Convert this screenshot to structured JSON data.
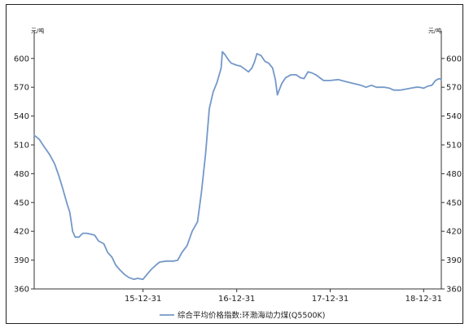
{
  "chart_data": {
    "type": "line",
    "unit_left": "元/吨",
    "unit_right": "元/吨",
    "ylim": [
      360,
      610
    ],
    "yticks": [
      360,
      390,
      420,
      450,
      480,
      510,
      540,
      570,
      600
    ],
    "xticks": [
      {
        "label": "15-12-31",
        "x": "2015-12-31"
      },
      {
        "label": "16-12-31",
        "x": "2016-12-31"
      },
      {
        "label": "17-12-31",
        "x": "2017-12-31"
      },
      {
        "label": "18-12-31",
        "x": "2018-12-31"
      }
    ],
    "xlim": [
      "2014-11-01",
      "2019-03-10"
    ],
    "grid": {
      "x": false,
      "y": false
    },
    "legend_position": "bottom",
    "series": [
      {
        "name": "综合平均价格指数:环渤海动力煤(Q5500K)",
        "color": "#7398c8",
        "points": [
          [
            "2014-11-01",
            520
          ],
          [
            "2014-11-20",
            516
          ],
          [
            "2014-12-10",
            508
          ],
          [
            "2014-12-31",
            500
          ],
          [
            "2015-01-20",
            490
          ],
          [
            "2015-02-05",
            478
          ],
          [
            "2015-02-20",
            465
          ],
          [
            "2015-03-10",
            448
          ],
          [
            "2015-03-20",
            440
          ],
          [
            "2015-03-31",
            420
          ],
          [
            "2015-04-10",
            414
          ],
          [
            "2015-04-25",
            414
          ],
          [
            "2015-05-10",
            418
          ],
          [
            "2015-05-25",
            418
          ],
          [
            "2015-06-10",
            417
          ],
          [
            "2015-06-25",
            416
          ],
          [
            "2015-07-10",
            410
          ],
          [
            "2015-07-31",
            407
          ],
          [
            "2015-08-15",
            398
          ],
          [
            "2015-09-01",
            393
          ],
          [
            "2015-09-15",
            385
          ],
          [
            "2015-10-01",
            380
          ],
          [
            "2015-10-20",
            375
          ],
          [
            "2015-11-05",
            372
          ],
          [
            "2015-11-25",
            370
          ],
          [
            "2015-12-10",
            371
          ],
          [
            "2015-12-31",
            370
          ],
          [
            "2016-01-15",
            375
          ],
          [
            "2016-01-31",
            380
          ],
          [
            "2016-02-20",
            385
          ],
          [
            "2016-03-05",
            388
          ],
          [
            "2016-03-31",
            389
          ],
          [
            "2016-04-30",
            389
          ],
          [
            "2016-05-15",
            390
          ],
          [
            "2016-05-31",
            398
          ],
          [
            "2016-06-20",
            405
          ],
          [
            "2016-07-10",
            420
          ],
          [
            "2016-07-31",
            430
          ],
          [
            "2016-08-15",
            460
          ],
          [
            "2016-08-31",
            500
          ],
          [
            "2016-09-15",
            548
          ],
          [
            "2016-09-30",
            565
          ],
          [
            "2016-10-15",
            575
          ],
          [
            "2016-10-31",
            590
          ],
          [
            "2016-11-05",
            607
          ],
          [
            "2016-11-15",
            604
          ],
          [
            "2016-11-30",
            598
          ],
          [
            "2016-12-10",
            595
          ],
          [
            "2016-12-31",
            593
          ],
          [
            "2017-01-15",
            592
          ],
          [
            "2017-01-31",
            589
          ],
          [
            "2017-02-15",
            586
          ],
          [
            "2017-02-28",
            590
          ],
          [
            "2017-03-10",
            596
          ],
          [
            "2017-03-20",
            605
          ],
          [
            "2017-04-05",
            603
          ],
          [
            "2017-04-20",
            597
          ],
          [
            "2017-05-05",
            595
          ],
          [
            "2017-05-20",
            590
          ],
          [
            "2017-05-31",
            578
          ],
          [
            "2017-06-08",
            562
          ],
          [
            "2017-06-15",
            567
          ],
          [
            "2017-06-25",
            574
          ],
          [
            "2017-07-10",
            580
          ],
          [
            "2017-07-31",
            583
          ],
          [
            "2017-08-20",
            583
          ],
          [
            "2017-09-05",
            580
          ],
          [
            "2017-09-20",
            579
          ],
          [
            "2017-10-05",
            586
          ],
          [
            "2017-10-20",
            585
          ],
          [
            "2017-11-05",
            583
          ],
          [
            "2017-11-20",
            580
          ],
          [
            "2017-12-05",
            577
          ],
          [
            "2017-12-31",
            577
          ],
          [
            "2018-01-31",
            578
          ],
          [
            "2018-02-28",
            576
          ],
          [
            "2018-03-31",
            574
          ],
          [
            "2018-04-30",
            572
          ],
          [
            "2018-05-20",
            570
          ],
          [
            "2018-06-10",
            572
          ],
          [
            "2018-06-30",
            570
          ],
          [
            "2018-07-31",
            570
          ],
          [
            "2018-08-20",
            569
          ],
          [
            "2018-09-05",
            567
          ],
          [
            "2018-09-30",
            567
          ],
          [
            "2018-10-20",
            568
          ],
          [
            "2018-11-10",
            569
          ],
          [
            "2018-11-30",
            570
          ],
          [
            "2018-12-15",
            570
          ],
          [
            "2018-12-31",
            569
          ],
          [
            "2019-01-15",
            571
          ],
          [
            "2019-02-01",
            572
          ],
          [
            "2019-02-15",
            577
          ],
          [
            "2019-03-01",
            579
          ],
          [
            "2019-03-10",
            578
          ]
        ]
      }
    ]
  }
}
